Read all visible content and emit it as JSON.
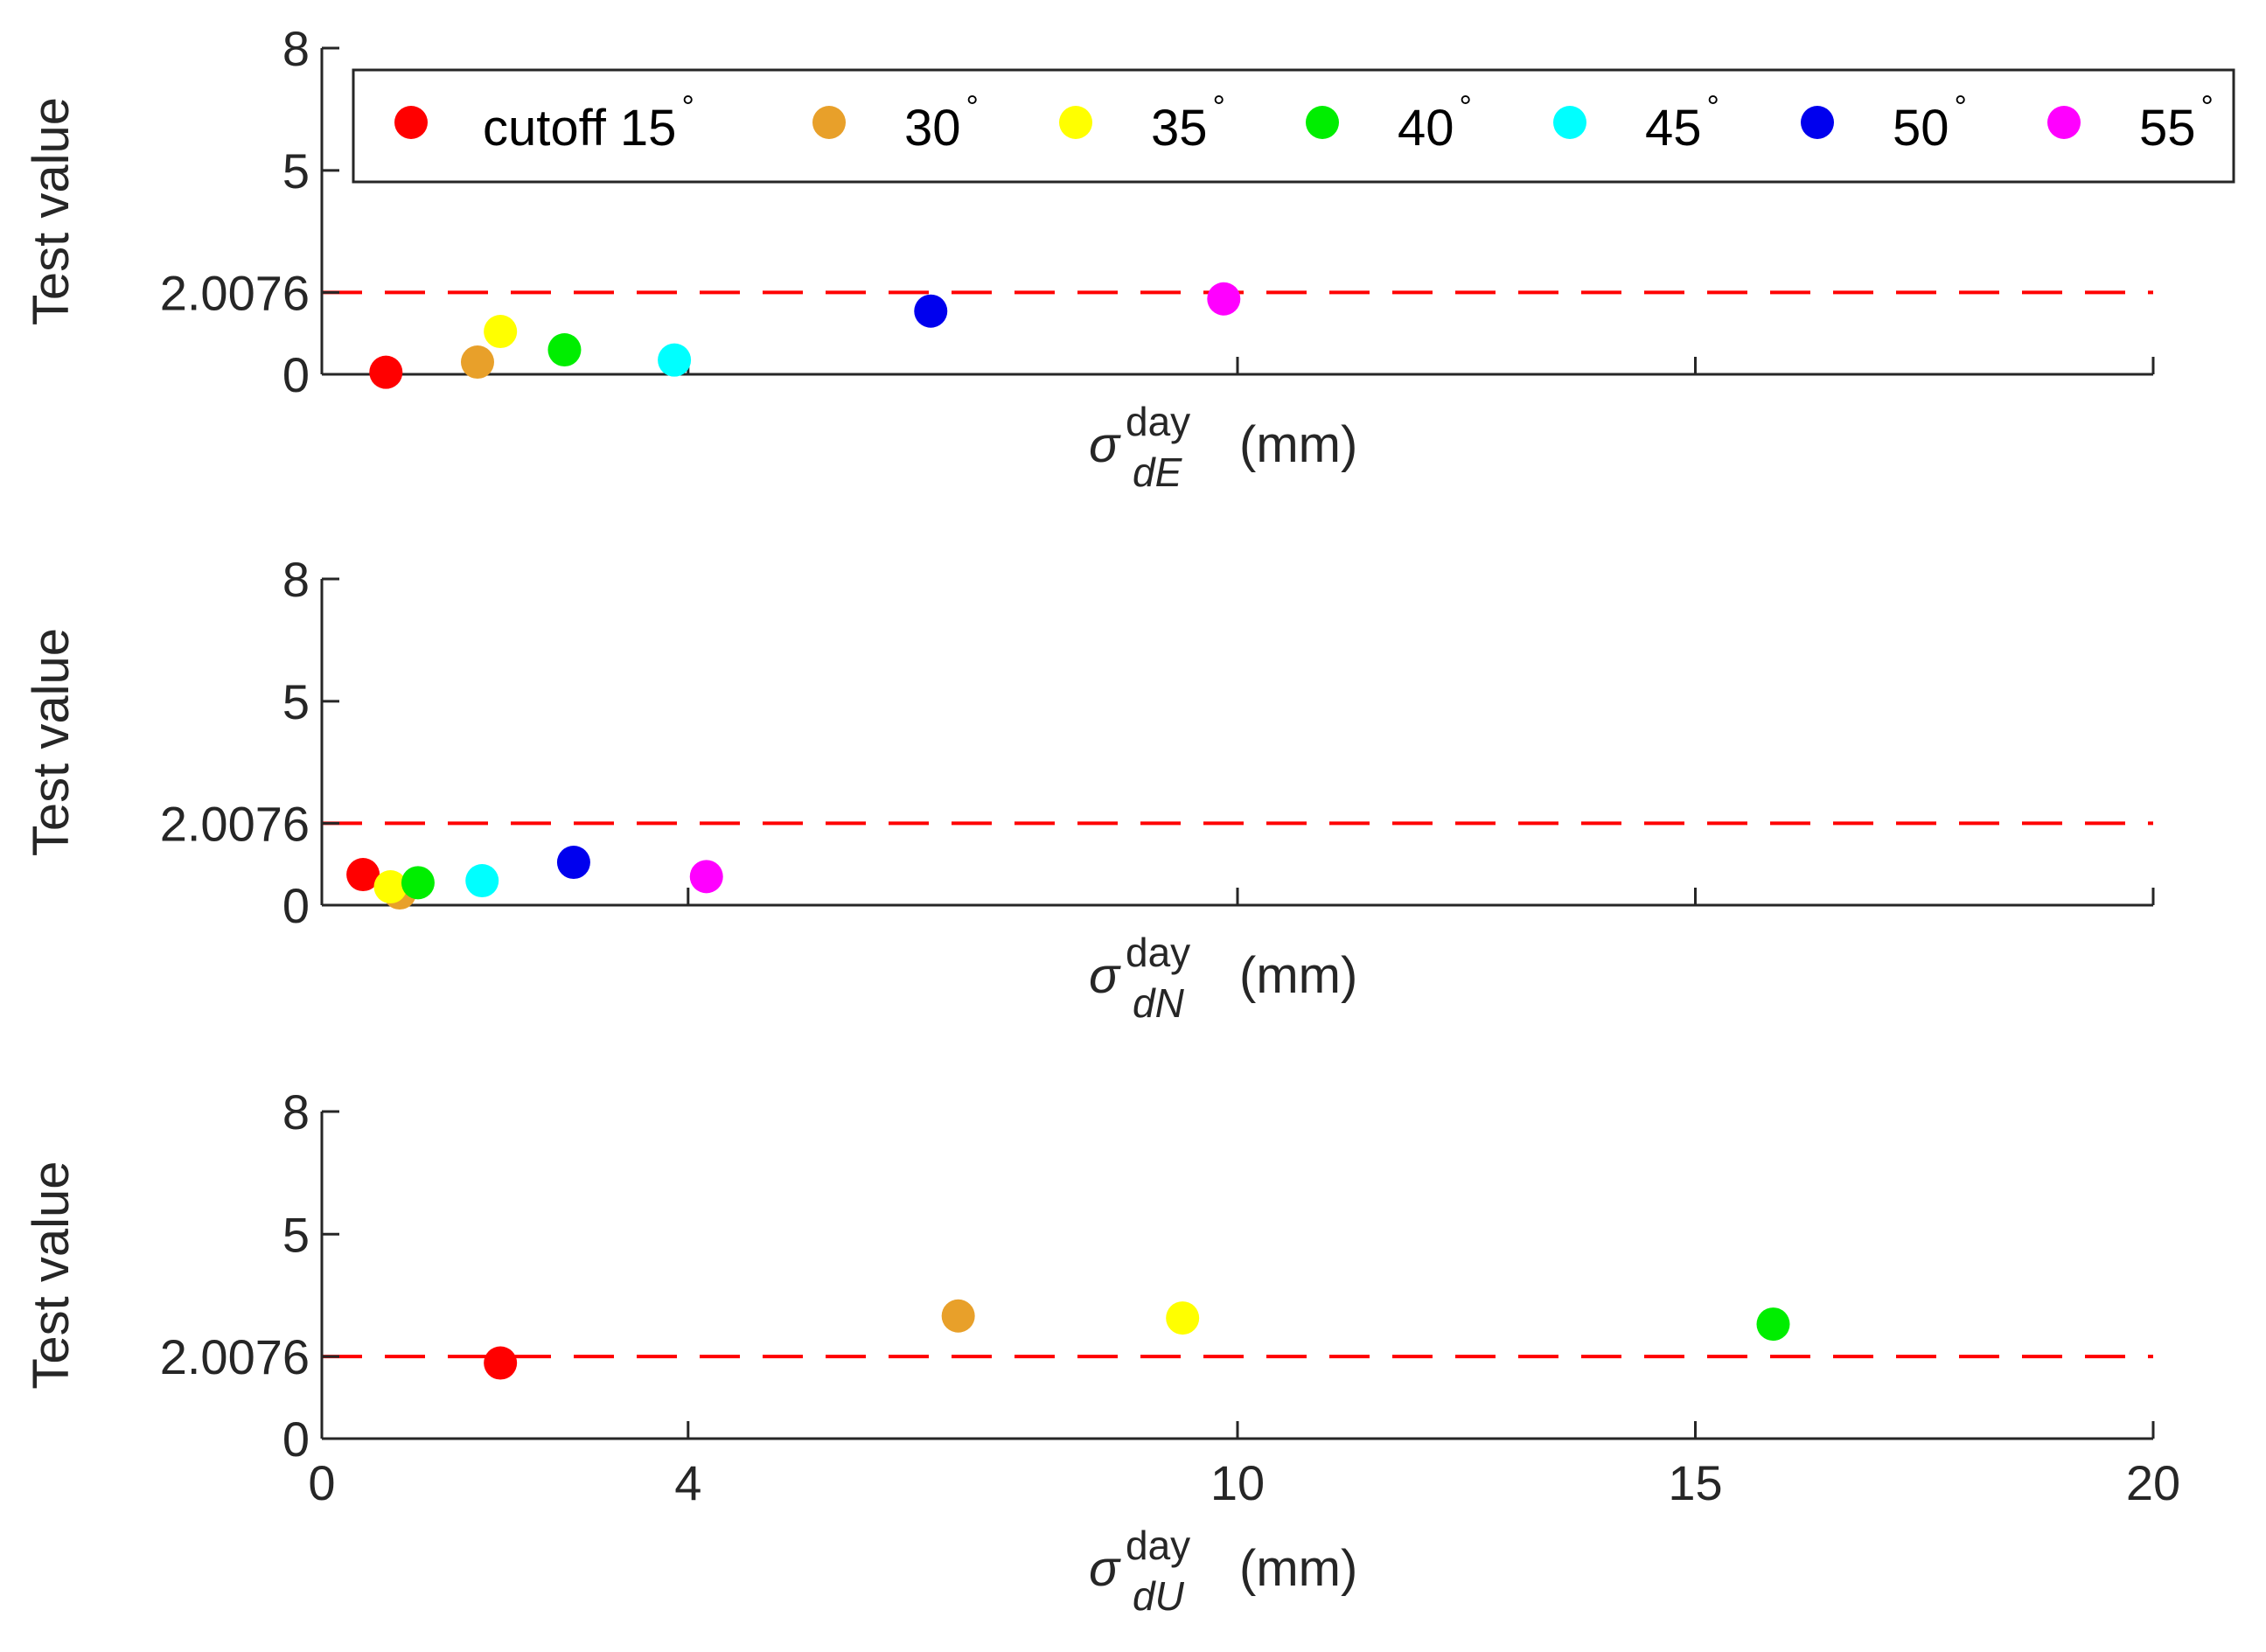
{
  "chart_data": {
    "type": "scatter",
    "legend": {
      "placement": "top",
      "entries": [
        {
          "label": "cutoff 15",
          "degree": "°",
          "color": "#ff0000"
        },
        {
          "label": "30",
          "degree": "°",
          "color": "#e8a02a"
        },
        {
          "label": "35",
          "degree": "°",
          "color": "#ffff00"
        },
        {
          "label": "40",
          "degree": "°",
          "color": "#00ee00"
        },
        {
          "label": "45",
          "degree": "°",
          "color": "#00ffff"
        },
        {
          "label": "50",
          "degree": "°",
          "color": "#0000ee"
        },
        {
          "label": "55",
          "degree": "°",
          "color": "#ff00ff"
        }
      ]
    },
    "threshold": {
      "value": 2.0076,
      "label": "2.0076",
      "color": "#ff0000",
      "style": "dashed"
    },
    "ylabel": "Test value",
    "ylim": [
      0,
      8
    ],
    "yticks": [
      {
        "value": 0,
        "label": "0"
      },
      {
        "value": 2.0076,
        "label": "2.0076"
      },
      {
        "value": 5,
        "label": "5"
      },
      {
        "value": 8,
        "label": "8"
      }
    ],
    "xlim": [
      0,
      20
    ],
    "xticks": [
      {
        "value": 0,
        "label": "0"
      },
      {
        "value": 4,
        "label": "4"
      },
      {
        "value": 10,
        "label": "10"
      },
      {
        "value": 15,
        "label": "15"
      },
      {
        "value": 20,
        "label": "20"
      }
    ],
    "panels": [
      {
        "name": "dE",
        "xlabel": {
          "symbol": "σ",
          "sup": "day",
          "sub": "dE",
          "unit": "(mm)"
        },
        "show_xtick_labels": false,
        "series": [
          {
            "name": "cutoff 15°",
            "x": 0.7,
            "y": 0.05
          },
          {
            "name": "30°",
            "x": 1.7,
            "y": 0.3
          },
          {
            "name": "35°",
            "x": 1.95,
            "y": 1.05
          },
          {
            "name": "40°",
            "x": 2.65,
            "y": 0.6
          },
          {
            "name": "45°",
            "x": 3.85,
            "y": 0.35
          },
          {
            "name": "50°",
            "x": 6.65,
            "y": 1.55
          },
          {
            "name": "55°",
            "x": 9.85,
            "y": 1.85
          }
        ]
      },
      {
        "name": "dN",
        "xlabel": {
          "symbol": "σ",
          "sup": "day",
          "sub": "dN",
          "unit": "(mm)"
        },
        "show_xtick_labels": false,
        "series": [
          {
            "name": "cutoff 15°",
            "x": 0.45,
            "y": 0.75
          },
          {
            "name": "30°",
            "x": 0.85,
            "y": 0.3
          },
          {
            "name": "35°",
            "x": 0.75,
            "y": 0.45
          },
          {
            "name": "40°",
            "x": 1.05,
            "y": 0.55
          },
          {
            "name": "45°",
            "x": 1.75,
            "y": 0.6
          },
          {
            "name": "50°",
            "x": 2.75,
            "y": 1.05
          },
          {
            "name": "55°",
            "x": 4.2,
            "y": 0.7
          }
        ]
      },
      {
        "name": "dU",
        "xlabel": {
          "symbol": "σ",
          "sup": "day",
          "sub": "dU",
          "unit": "(mm)"
        },
        "show_xtick_labels": true,
        "series": [
          {
            "name": "cutoff 15°",
            "x": 1.95,
            "y": 1.85
          },
          {
            "name": "30°",
            "x": 6.95,
            "y": 3.0
          },
          {
            "name": "35°",
            "x": 9.4,
            "y": 2.95
          },
          {
            "name": "40°",
            "x": 15.85,
            "y": 2.8
          }
        ]
      }
    ]
  }
}
